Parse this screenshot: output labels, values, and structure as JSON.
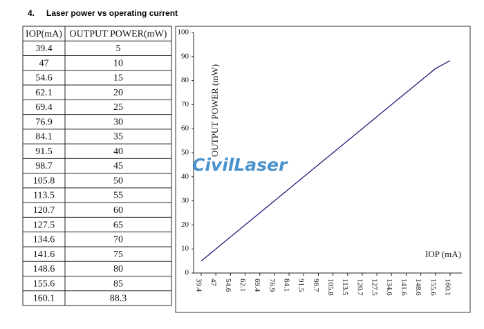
{
  "heading": {
    "number": "4.",
    "title": "Laser power vs operating current"
  },
  "table": {
    "columns": [
      "IOP(mA)",
      "OUTPUT POWER(mW)"
    ]
  },
  "watermark": "CivilLaser",
  "chart_data": {
    "type": "line",
    "xlabel": "IOP (mA)",
    "ylabel": "OUTPUT POWER (mW)",
    "categories": [
      "39.4",
      "47",
      "54.6",
      "62.1",
      "69.4",
      "76.9",
      "84.1",
      "91.5",
      "98.7",
      "105.8",
      "113.5",
      "120.7",
      "127.5",
      "134.6",
      "141.6",
      "148.6",
      "155.6",
      "160.1"
    ],
    "values": [
      5,
      10,
      15,
      20,
      25,
      30,
      35,
      40,
      45,
      50,
      55,
      60,
      65,
      70,
      75,
      80,
      85,
      88.3
    ],
    "color": "#1c1c78",
    "ylim": [
      0,
      100
    ],
    "yticks": [
      0,
      10,
      20,
      30,
      40,
      50,
      60,
      70,
      80,
      90,
      100
    ],
    "grid": false
  }
}
